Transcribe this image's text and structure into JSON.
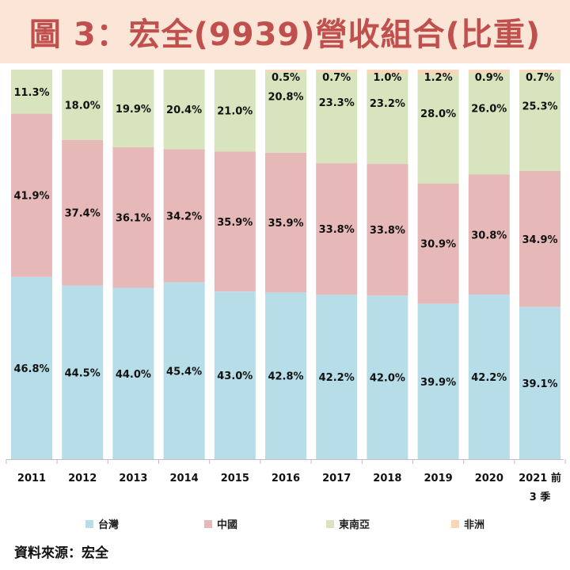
{
  "title": "圖 3：宏全(9939)營收組合(比重)",
  "source": "資料來源：宏全",
  "chart_data": {
    "type": "bar",
    "stacked": true,
    "percent": true,
    "title": "圖 3：宏全(9939)營收組合(比重)",
    "categories": [
      "2011",
      "2012",
      "2013",
      "2014",
      "2015",
      "2016",
      "2017",
      "2018",
      "2019",
      "2020",
      "2021 前 3 季"
    ],
    "category_lines": [
      [
        "2011"
      ],
      [
        "2012"
      ],
      [
        "2013"
      ],
      [
        "2014"
      ],
      [
        "2015"
      ],
      [
        "2016"
      ],
      [
        "2017"
      ],
      [
        "2018"
      ],
      [
        "2019"
      ],
      [
        "2020"
      ],
      [
        "2021 前",
        "3 季"
      ]
    ],
    "ylim": [
      0,
      100
    ],
    "grid": false,
    "legend_position": "bottom",
    "series": [
      {
        "name": "台灣",
        "color": "#b7dde8",
        "values": [
          46.8,
          44.5,
          44.0,
          45.4,
          43.0,
          42.8,
          42.2,
          42.0,
          39.9,
          42.2,
          39.1
        ]
      },
      {
        "name": "中國",
        "color": "#e6b9b8",
        "values": [
          41.9,
          37.4,
          36.1,
          34.2,
          35.9,
          35.9,
          33.8,
          33.8,
          30.9,
          30.8,
          34.9
        ]
      },
      {
        "name": "東南亞",
        "color": "#d7e4bd",
        "values": [
          11.3,
          18.0,
          19.9,
          20.4,
          21.0,
          20.8,
          23.3,
          23.2,
          28.0,
          26.0,
          25.3
        ]
      },
      {
        "name": "非洲",
        "color": "#fcd5b5",
        "values": [
          null,
          null,
          null,
          null,
          null,
          0.5,
          0.7,
          1.0,
          1.2,
          0.9,
          0.7
        ]
      }
    ]
  }
}
